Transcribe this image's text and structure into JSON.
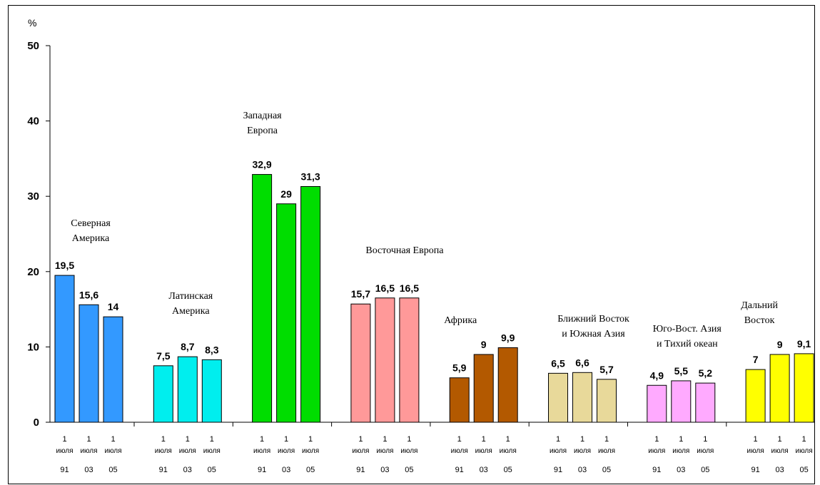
{
  "chart_data": {
    "type": "bar",
    "y_unit": "%",
    "ylim": [
      0,
      50
    ],
    "yticks": [
      0,
      10,
      20,
      30,
      40,
      50
    ],
    "grid": false,
    "period_labels": [
      {
        "day": "1",
        "month": "июля",
        "year": "91"
      },
      {
        "day": "1",
        "month": "июля",
        "year": "03"
      },
      {
        "day": "1",
        "month": "июля",
        "year": "05"
      }
    ],
    "groups": [
      {
        "label_lines": [
          "Северная",
          "Америка"
        ],
        "color": "#3399ff",
        "values": [
          19.5,
          15.6,
          14
        ],
        "value_labels": [
          "19,5",
          "15,6",
          "14"
        ]
      },
      {
        "label_lines": [
          "Латинская",
          "Америка"
        ],
        "color": "#00eeee",
        "values": [
          7.5,
          8.7,
          8.3
        ],
        "value_labels": [
          "7,5",
          "8,7",
          "8,3"
        ]
      },
      {
        "label_lines": [
          "Западная",
          "Европа"
        ],
        "color": "#00dd00",
        "values": [
          32.9,
          29,
          31.3
        ],
        "value_labels": [
          "32,9",
          "29",
          "31,3"
        ]
      },
      {
        "label_lines": [
          "Восточная Европа"
        ],
        "color": "#ff9999",
        "values": [
          15.7,
          16.5,
          16.5
        ],
        "value_labels": [
          "15,7",
          "16,5",
          "16,5"
        ]
      },
      {
        "label_lines": [
          "Африка"
        ],
        "color": "#b35900",
        "values": [
          5.9,
          9,
          9.9
        ],
        "value_labels": [
          "5,9",
          "9",
          "9,9"
        ]
      },
      {
        "label_lines": [
          "Ближний Восток",
          "и Южная Азия"
        ],
        "color": "#e8d99a",
        "values": [
          6.5,
          6.6,
          5.7
        ],
        "value_labels": [
          "6,5",
          "6,6",
          "5,7"
        ]
      },
      {
        "label_lines": [
          "Юго-Вост. Азия",
          "и Тихий океан"
        ],
        "color": "#ffaaff",
        "values": [
          4.9,
          5.5,
          5.2
        ],
        "value_labels": [
          "4,9",
          "5,5",
          "5,2"
        ]
      },
      {
        "label_lines": [
          "Дальний",
          "Восток"
        ],
        "color": "#ffff00",
        "values": [
          7,
          9,
          9.1
        ],
        "value_labels": [
          "7",
          "9",
          "9,1"
        ]
      }
    ]
  }
}
